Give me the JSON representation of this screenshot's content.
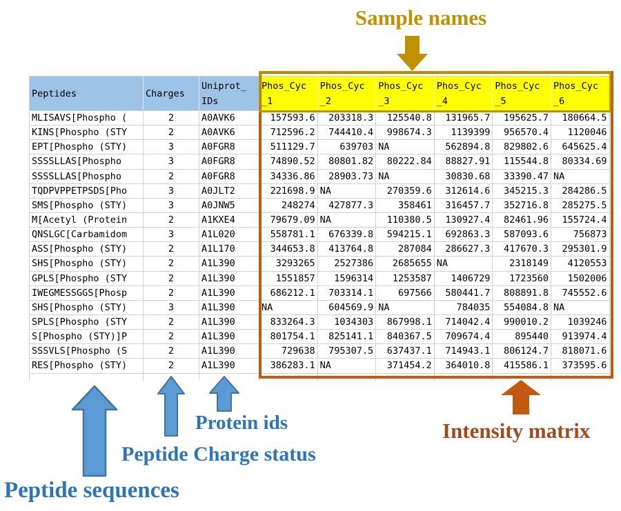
{
  "annotations": {
    "sample_names": "Sample names",
    "protein_ids": "Protein ids",
    "peptide_charge_status": "Peptide Charge status",
    "peptide_sequences": "Peptide sequences",
    "intensity_matrix": "Intensity matrix"
  },
  "colors": {
    "gold": "#BF9000",
    "orange": "#C45911",
    "intensity_text": "#A34A1C",
    "blue_text": "#2E75B6",
    "blue_arrow_fill": "#5B9BD5",
    "blue_arrow_stroke": "#41719C",
    "blue_header_bg": "#9DC3E6",
    "yellow_header_bg": "#FFFF00",
    "grid_line": "#D0D0D0"
  },
  "table": {
    "left_headers": [
      {
        "line1": "Peptides",
        "line2": ""
      },
      {
        "line1": "Charges",
        "line2": ""
      },
      {
        "line1": "Uniprot_",
        "line2": "IDs"
      }
    ],
    "sample_headers": [
      {
        "line1": "Phos_Cyc",
        "line2": "_1"
      },
      {
        "line1": "Phos_Cyc",
        "line2": "_2"
      },
      {
        "line1": "Phos_Cyc",
        "line2": "_3"
      },
      {
        "line1": "Phos_Cyc",
        "line2": "_4"
      },
      {
        "line1": "Phos_Cyc",
        "line2": "_5"
      },
      {
        "line1": "Phos_Cyc",
        "line2": "_6"
      }
    ],
    "rows": [
      {
        "peptide": "MLISAVS[Phospho (",
        "charge": "2",
        "uniprot": "A0AVK6",
        "values": [
          "157593.6",
          "203318.3",
          "125540.8",
          "131965.7",
          "195625.7",
          "180664.5"
        ]
      },
      {
        "peptide": "KINS[Phospho (STY",
        "charge": "2",
        "uniprot": "A0AVK6",
        "values": [
          "712596.2",
          "744410.4",
          "998674.3",
          "1139399",
          "956570.4",
          "1120046"
        ]
      },
      {
        "peptide": "EPT[Phospho (STY)",
        "charge": "3",
        "uniprot": "A0FGR8",
        "values": [
          "511129.7",
          "639703",
          "NA",
          "562894.8",
          "829802.6",
          "645625.4"
        ]
      },
      {
        "peptide": "SSSSLLAS[Phospho",
        "charge": "3",
        "uniprot": "A0FGR8",
        "values": [
          "74890.52",
          "80801.82",
          "80222.84",
          "88827.91",
          "115544.8",
          "80334.69"
        ]
      },
      {
        "peptide": "SSSSLLAS[Phospho",
        "charge": "2",
        "uniprot": "A0FGR8",
        "values": [
          "34336.86",
          "28903.73",
          "NA",
          "30830.68",
          "33390.47",
          "NA"
        ]
      },
      {
        "peptide": "TQDPVPPETPSDS[Pho",
        "charge": "3",
        "uniprot": "A0JLT2",
        "values": [
          "221698.9",
          "NA",
          "270359.6",
          "312614.6",
          "345215.3",
          "284286.5"
        ]
      },
      {
        "peptide": "SMS[Phospho (STY)",
        "charge": "3",
        "uniprot": "A0JNW5",
        "values": [
          "248274",
          "427877.3",
          "358461",
          "316457.7",
          "352716.8",
          "285275.5"
        ]
      },
      {
        "peptide": "M[Acetyl (Protein",
        "charge": "2",
        "uniprot": "A1KXE4",
        "values": [
          "79679.09",
          "NA",
          "110380.5",
          "130927.4",
          "82461.96",
          "155724.4"
        ]
      },
      {
        "peptide": "QNSLGC[Carbamidom",
        "charge": "3",
        "uniprot": "A1L020",
        "values": [
          "558781.1",
          "676339.8",
          "594215.1",
          "692863.3",
          "587093.6",
          "756873"
        ]
      },
      {
        "peptide": "ASS[Phospho (STY)",
        "charge": "2",
        "uniprot": "A1L170",
        "values": [
          "344653.8",
          "413764.8",
          "287084",
          "286627.3",
          "417670.3",
          "295301.9"
        ]
      },
      {
        "peptide": "SHS[Phospho (STY)",
        "charge": "2",
        "uniprot": "A1L390",
        "values": [
          "3293265",
          "2527386",
          "2685655",
          "NA",
          "2318149",
          "4120553"
        ]
      },
      {
        "peptide": "GPLS[Phospho (STY",
        "charge": "2",
        "uniprot": "A1L390",
        "values": [
          "1551857",
          "1596314",
          "1253587",
          "1406729",
          "1723560",
          "1502006"
        ]
      },
      {
        "peptide": "IWEGMESSGGS[Phosp",
        "charge": "2",
        "uniprot": "A1L390",
        "values": [
          "686212.1",
          "703314.1",
          "697566",
          "580441.7",
          "808891.8",
          "745552.6"
        ]
      },
      {
        "peptide": "SHS[Phospho (STY)",
        "charge": "3",
        "uniprot": "A1L390",
        "values": [
          "NA",
          "604569.9",
          "NA",
          "784035",
          "554084.8",
          "NA"
        ]
      },
      {
        "peptide": "SPLS[Phospho (STY",
        "charge": "2",
        "uniprot": "A1L390",
        "values": [
          "833264.3",
          "1034303",
          "867998.1",
          "714042.4",
          "990010.2",
          "1039246"
        ]
      },
      {
        "peptide": "S[Phospho (STY)]P",
        "charge": "2",
        "uniprot": "A1L390",
        "values": [
          "801754.1",
          "825141.1",
          "840367.5",
          "709674.4",
          "895440",
          "913974.4"
        ]
      },
      {
        "peptide": "SSSVLS[Phospho (S",
        "charge": "2",
        "uniprot": "A1L390",
        "values": [
          "729638",
          "795307.5",
          "637437.1",
          "714943.1",
          "806124.7",
          "818071.6"
        ]
      },
      {
        "peptide": "RES[Phospho (STY)",
        "charge": "2",
        "uniprot": "A1L390",
        "values": [
          "386283.1",
          "NA",
          "371454.2",
          "364010.8",
          "415586.1",
          "373595.6"
        ]
      }
    ]
  }
}
